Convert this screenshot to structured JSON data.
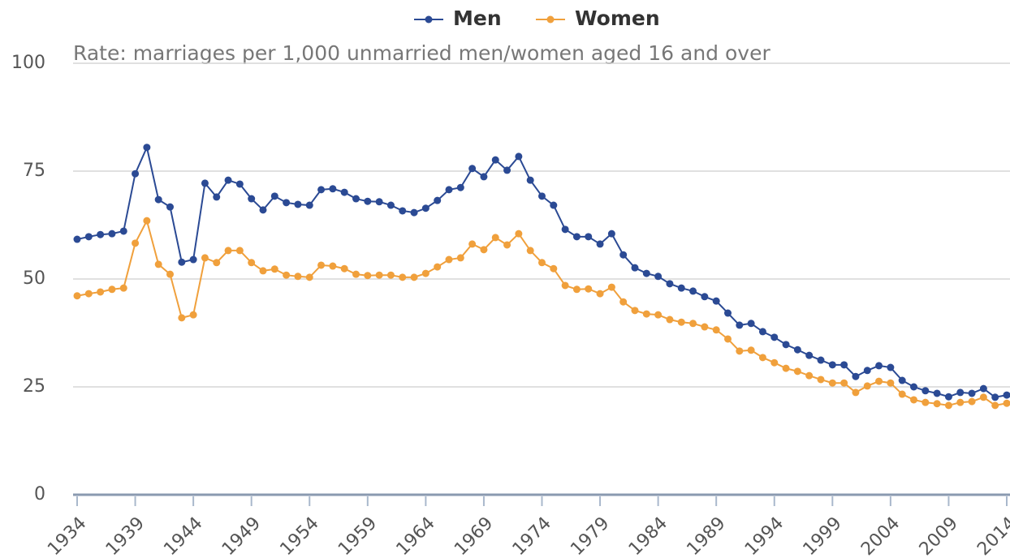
{
  "chart_data": {
    "type": "line",
    "subtitle": "Rate: marriages per 1,000 unmarried men/women aged 16 and over",
    "x": [
      1934,
      1935,
      1936,
      1937,
      1938,
      1939,
      1940,
      1941,
      1942,
      1943,
      1944,
      1945,
      1946,
      1947,
      1948,
      1949,
      1950,
      1951,
      1952,
      1953,
      1954,
      1955,
      1956,
      1957,
      1958,
      1959,
      1960,
      1961,
      1962,
      1963,
      1964,
      1965,
      1966,
      1967,
      1968,
      1969,
      1970,
      1971,
      1972,
      1973,
      1974,
      1975,
      1976,
      1977,
      1978,
      1979,
      1980,
      1981,
      1982,
      1983,
      1984,
      1985,
      1986,
      1987,
      1988,
      1989,
      1990,
      1991,
      1992,
      1993,
      1994,
      1995,
      1996,
      1997,
      1998,
      1999,
      2000,
      2001,
      2002,
      2003,
      2004,
      2005,
      2006,
      2007,
      2008,
      2009,
      2010,
      2011,
      2012,
      2013,
      2014
    ],
    "series": [
      {
        "name": "Men",
        "color": "#2b4a94",
        "values": [
          59.2,
          59.8,
          60.3,
          60.5,
          61.1,
          74.4,
          80.5,
          68.4,
          66.7,
          53.9,
          54.5,
          72.2,
          69.0,
          72.9,
          72.0,
          68.6,
          66.0,
          69.2,
          67.7,
          67.3,
          67.1,
          70.7,
          70.9,
          70.1,
          68.6,
          68.0,
          67.9,
          67.1,
          65.8,
          65.4,
          66.4,
          68.2,
          70.7,
          71.2,
          75.6,
          73.7,
          77.6,
          75.2,
          78.4,
          72.9,
          69.2,
          67.1,
          61.5,
          59.8,
          59.8,
          58.1,
          60.5,
          55.6,
          52.6,
          51.3,
          50.6,
          48.9,
          47.9,
          47.2,
          45.9,
          44.9,
          42.1,
          39.3,
          39.7,
          37.8,
          36.5,
          34.8,
          33.6,
          32.3,
          31.2,
          30.1,
          30.1,
          27.4,
          28.8,
          29.9,
          29.5,
          26.5,
          25.0,
          24.1,
          23.5,
          22.7,
          23.7,
          23.5,
          24.6,
          22.6,
          23.1
        ]
      },
      {
        "name": "Women",
        "color": "#f0a03c",
        "values": [
          46.1,
          46.6,
          47.0,
          47.6,
          47.9,
          58.3,
          63.5,
          53.4,
          51.1,
          41.0,
          41.7,
          54.9,
          53.8,
          56.6,
          56.6,
          53.8,
          51.9,
          52.3,
          50.9,
          50.6,
          50.4,
          53.2,
          53.0,
          52.4,
          51.1,
          50.8,
          50.9,
          50.9,
          50.4,
          50.4,
          51.3,
          52.8,
          54.5,
          54.9,
          58.1,
          56.8,
          59.6,
          57.9,
          60.5,
          56.6,
          53.8,
          52.4,
          48.5,
          47.6,
          47.7,
          46.6,
          48.1,
          44.7,
          42.7,
          41.9,
          41.7,
          40.6,
          40.0,
          39.7,
          38.9,
          38.2,
          36.1,
          33.3,
          33.5,
          31.8,
          30.6,
          29.3,
          28.6,
          27.6,
          26.7,
          25.9,
          25.9,
          23.7,
          25.2,
          26.3,
          25.9,
          23.3,
          22.0,
          21.4,
          21.1,
          20.7,
          21.4,
          21.6,
          22.6,
          20.7,
          21.2
        ]
      }
    ],
    "xlim": [
      1934,
      2014
    ],
    "xticks": [
      1934,
      1939,
      1944,
      1949,
      1954,
      1959,
      1964,
      1969,
      1974,
      1979,
      1984,
      1989,
      1994,
      1999,
      2004,
      2009,
      2014
    ],
    "ylim": [
      0,
      100
    ],
    "yticks": [
      0,
      25,
      50,
      75,
      100
    ],
    "grid": true,
    "legend": "top"
  }
}
